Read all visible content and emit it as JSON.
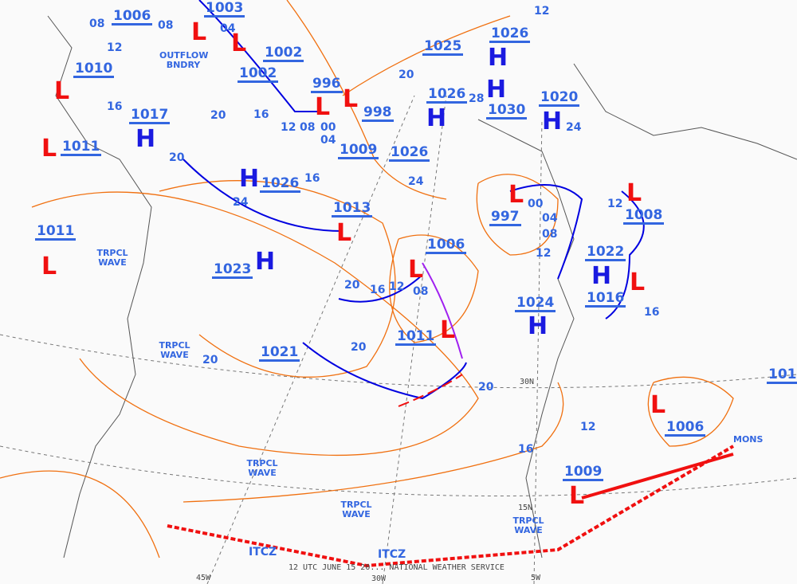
{
  "footer": "12 UTC JUNE 15 20... NATIONAL WEATHER SERVICE",
  "centers": [
    {
      "type": "L",
      "p": "1006"
    },
    {
      "type": "L",
      "p": "1003"
    },
    {
      "type": "L",
      "p": "1002"
    },
    {
      "type": "L",
      "p": "1010"
    },
    {
      "type": "L",
      "p": "1002"
    },
    {
      "type": "L",
      "p": "996"
    },
    {
      "type": "L",
      "p": "998"
    },
    {
      "type": "H",
      "p": "1017"
    },
    {
      "type": "L",
      "p": "1011"
    },
    {
      "type": "L",
      "p": "1009"
    },
    {
      "type": "H",
      "p": "1026"
    },
    {
      "type": "H",
      "p": "1025"
    },
    {
      "type": "H",
      "p": "1026"
    },
    {
      "type": "H",
      "p": "1030"
    },
    {
      "type": "H",
      "p": "1020"
    },
    {
      "type": "H",
      "p": "1026"
    },
    {
      "type": "H",
      "p": "1026"
    },
    {
      "type": "L",
      "p": "997"
    },
    {
      "type": "L",
      "p": "1008"
    },
    {
      "type": "L",
      "p": "1013"
    },
    {
      "type": "L",
      "p": "1011"
    },
    {
      "type": "H",
      "p": "1023"
    },
    {
      "type": "L",
      "p": "1006"
    },
    {
      "type": "H",
      "p": "1022"
    },
    {
      "type": "L",
      "p": "1016"
    },
    {
      "type": "H",
      "p": "1024"
    },
    {
      "type": "L",
      "p": "1011"
    },
    {
      "type": "H",
      "p": "1021"
    },
    {
      "type": "L",
      "p": "1006"
    },
    {
      "type": "L",
      "p": "1009"
    },
    {
      "type": "",
      "p": "101"
    }
  ],
  "labels": {
    "outflow": "OUTFLOW BNDRY",
    "wave": "TRPCL WAVE",
    "itcz": "ITCZ",
    "monsoon": "MONS"
  },
  "isobars": [
    "08",
    "08",
    "12",
    "16",
    "20",
    "24",
    "28",
    "12",
    "08",
    "04",
    "00",
    "04",
    "16",
    "20",
    "24",
    "12",
    "20",
    "16",
    "20",
    "20",
    "20",
    "12",
    "16",
    "12",
    "08",
    "00",
    "04",
    "08",
    "12",
    "16",
    "20",
    "12",
    "16",
    "24"
  ],
  "grid": [
    "30N",
    "15N",
    "45W",
    "30W",
    "5W"
  ],
  "colors": {
    "high": "#1a1ae0",
    "low": "#f01010",
    "isobar": "#f07010",
    "cold_front": "#0000e0",
    "warm_front": "#f01010",
    "occluded": "#a020f0"
  }
}
